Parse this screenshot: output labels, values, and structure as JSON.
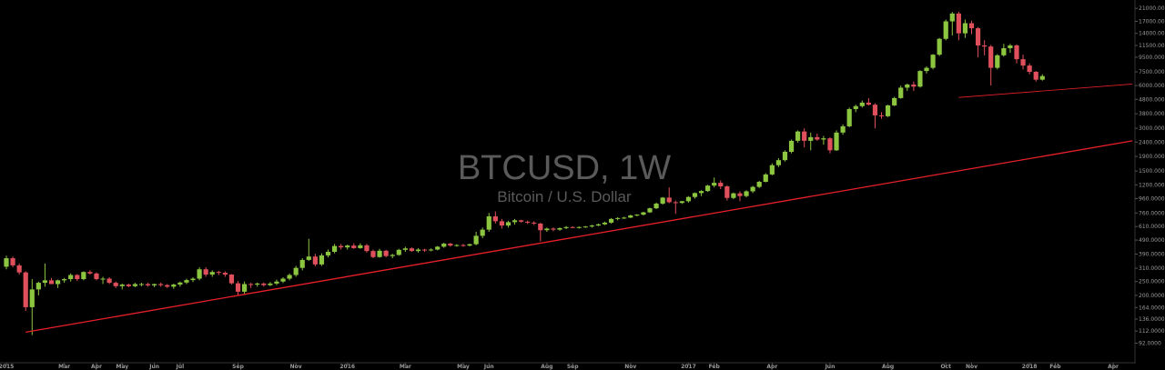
{
  "chart_data": {
    "type": "candlestick",
    "title": "BTCUSD, 1W",
    "subtitle": "Bitcoin / U.S. Dollar",
    "y_scale": "log",
    "ylim": [
      80,
      22000
    ],
    "grid": false,
    "colors": {
      "up": "#8cc540",
      "down": "#e0505c",
      "trendline": "#e8202a",
      "text": "#9a9a9a",
      "background": "#000000"
    },
    "y_ticks": [
      {
        "value": 21000,
        "label": "21000.0000"
      },
      {
        "value": 17000,
        "label": "17000.0000"
      },
      {
        "value": 14000,
        "label": "14000.0000"
      },
      {
        "value": 11500,
        "label": "11500.0000"
      },
      {
        "value": 9500,
        "label": "9500.0000"
      },
      {
        "value": 7500,
        "label": "7500.0000"
      },
      {
        "value": 6000,
        "label": "6000.0000"
      },
      {
        "value": 4800,
        "label": "4800.0000"
      },
      {
        "value": 3800,
        "label": "3800.0000"
      },
      {
        "value": 3000,
        "label": "3000.0000"
      },
      {
        "value": 2400,
        "label": "2400.0000"
      },
      {
        "value": 1900,
        "label": "1900.0000"
      },
      {
        "value": 1500,
        "label": "1500.0000"
      },
      {
        "value": 1200,
        "label": "1200.0000"
      },
      {
        "value": 960,
        "label": "960.0000"
      },
      {
        "value": 760,
        "label": "760.0000"
      },
      {
        "value": 610,
        "label": "610.0000"
      },
      {
        "value": 490,
        "label": "490.0000"
      },
      {
        "value": 390,
        "label": "390.0000"
      },
      {
        "value": 310,
        "label": "310.0000"
      },
      {
        "value": 250,
        "label": "250.0000"
      },
      {
        "value": 200,
        "label": "200.0000"
      },
      {
        "value": 164,
        "label": "164.0000"
      },
      {
        "value": 136,
        "label": "136.0000"
      },
      {
        "value": 112,
        "label": "112.0000"
      },
      {
        "value": 92,
        "label": "92.0000"
      }
    ],
    "x_ticks": [
      {
        "label": "2015",
        "week": 0
      },
      {
        "label": "Mar",
        "week": 9
      },
      {
        "label": "Apr",
        "week": 14
      },
      {
        "label": "May",
        "week": 18
      },
      {
        "label": "Jun",
        "week": 23
      },
      {
        "label": "Jul",
        "week": 27
      },
      {
        "label": "Sep",
        "week": 36
      },
      {
        "label": "Nov",
        "week": 45
      },
      {
        "label": "2016",
        "week": 53
      },
      {
        "label": "Mar",
        "week": 62
      },
      {
        "label": "May",
        "week": 71
      },
      {
        "label": "Jun",
        "week": 75
      },
      {
        "label": "Aug",
        "week": 84
      },
      {
        "label": "Sep",
        "week": 88
      },
      {
        "label": "Nov",
        "week": 97
      },
      {
        "label": "2017",
        "week": 106
      },
      {
        "label": "Feb",
        "week": 110
      },
      {
        "label": "Apr",
        "week": 119
      },
      {
        "label": "Jun",
        "week": 128
      },
      {
        "label": "Aug",
        "week": 137
      },
      {
        "label": "Oct",
        "week": 146
      },
      {
        "label": "Nov",
        "week": 150
      },
      {
        "label": "2018",
        "week": 159
      },
      {
        "label": "Feb",
        "week": 163
      },
      {
        "label": "Apr",
        "week": 172
      }
    ],
    "candles": [
      [
        318,
        380,
        305,
        365
      ],
      [
        365,
        375,
        315,
        325
      ],
      [
        325,
        335,
        280,
        290
      ],
      [
        290,
        295,
        155,
        165
      ],
      [
        165,
        260,
        105,
        220
      ],
      [
        220,
        250,
        200,
        245
      ],
      [
        245,
        335,
        230,
        255
      ],
      [
        255,
        265,
        240,
        240
      ],
      [
        240,
        258,
        225,
        255
      ],
      [
        255,
        265,
        245,
        260
      ],
      [
        260,
        285,
        250,
        278
      ],
      [
        278,
        282,
        252,
        260
      ],
      [
        260,
        295,
        255,
        292
      ],
      [
        292,
        300,
        280,
        285
      ],
      [
        285,
        290,
        255,
        260
      ],
      [
        260,
        270,
        240,
        262
      ],
      [
        262,
        268,
        240,
        245
      ],
      [
        245,
        250,
        225,
        232
      ],
      [
        232,
        242,
        220,
        238
      ],
      [
        238,
        242,
        228,
        232
      ],
      [
        232,
        245,
        228,
        240
      ],
      [
        240,
        245,
        232,
        240
      ],
      [
        240,
        245,
        230,
        235
      ],
      [
        235,
        242,
        228,
        240
      ],
      [
        240,
        246,
        230,
        236
      ],
      [
        236,
        240,
        225,
        230
      ],
      [
        230,
        242,
        222,
        238
      ],
      [
        238,
        250,
        230,
        246
      ],
      [
        246,
        262,
        240,
        256
      ],
      [
        256,
        268,
        248,
        262
      ],
      [
        262,
        315,
        255,
        305
      ],
      [
        305,
        315,
        270,
        280
      ],
      [
        280,
        300,
        270,
        292
      ],
      [
        292,
        297,
        278,
        288
      ],
      [
        288,
        295,
        270,
        280
      ],
      [
        280,
        282,
        238,
        243
      ],
      [
        243,
        252,
        200,
        212
      ],
      [
        212,
        250,
        205,
        240
      ],
      [
        240,
        245,
        225,
        238
      ],
      [
        238,
        246,
        230,
        242
      ],
      [
        242,
        246,
        230,
        236
      ],
      [
        236,
        248,
        232,
        242
      ],
      [
        242,
        258,
        236,
        250
      ],
      [
        250,
        268,
        244,
        262
      ],
      [
        262,
        285,
        255,
        278
      ],
      [
        278,
        322,
        270,
        312
      ],
      [
        312,
        365,
        300,
        355
      ],
      [
        355,
        500,
        350,
        375
      ],
      [
        375,
        392,
        320,
        330
      ],
      [
        330,
        395,
        322,
        382
      ],
      [
        382,
        420,
        370,
        405
      ],
      [
        405,
        460,
        395,
        445
      ],
      [
        445,
        460,
        420,
        435
      ],
      [
        435,
        455,
        420,
        448
      ],
      [
        448,
        465,
        425,
        430
      ],
      [
        430,
        465,
        425,
        450
      ],
      [
        450,
        460,
        400,
        410
      ],
      [
        410,
        420,
        365,
        372
      ],
      [
        372,
        425,
        368,
        412
      ],
      [
        412,
        418,
        370,
        378
      ],
      [
        378,
        392,
        365,
        385
      ],
      [
        385,
        425,
        380,
        418
      ],
      [
        418,
        440,
        405,
        428
      ],
      [
        428,
        435,
        405,
        410
      ],
      [
        410,
        430,
        400,
        420
      ],
      [
        420,
        425,
        405,
        415
      ],
      [
        415,
        428,
        408,
        420
      ],
      [
        420,
        445,
        415,
        440
      ],
      [
        440,
        470,
        432,
        462
      ],
      [
        462,
        468,
        440,
        448
      ],
      [
        448,
        458,
        440,
        452
      ],
      [
        452,
        460,
        440,
        448
      ],
      [
        448,
        462,
        442,
        458
      ],
      [
        458,
        560,
        450,
        525
      ],
      [
        525,
        600,
        505,
        580
      ],
      [
        580,
        760,
        560,
        720
      ],
      [
        720,
        780,
        640,
        665
      ],
      [
        665,
        690,
        590,
        620
      ],
      [
        620,
        670,
        600,
        655
      ],
      [
        655,
        690,
        630,
        675
      ],
      [
        675,
        680,
        650,
        660
      ],
      [
        660,
        672,
        635,
        650
      ],
      [
        650,
        665,
        625,
        640
      ],
      [
        640,
        650,
        480,
        575
      ],
      [
        575,
        600,
        560,
        590
      ],
      [
        590,
        600,
        565,
        580
      ],
      [
        580,
        600,
        570,
        595
      ],
      [
        595,
        615,
        585,
        605
      ],
      [
        605,
        612,
        595,
        600
      ],
      [
        600,
        612,
        590,
        605
      ],
      [
        605,
        615,
        598,
        610
      ],
      [
        610,
        628,
        600,
        620
      ],
      [
        620,
        640,
        615,
        632
      ],
      [
        632,
        660,
        625,
        650
      ],
      [
        650,
        700,
        640,
        690
      ],
      [
        690,
        710,
        675,
        700
      ],
      [
        700,
        715,
        690,
        705
      ],
      [
        705,
        740,
        700,
        730
      ],
      [
        730,
        745,
        720,
        740
      ],
      [
        740,
        775,
        730,
        768
      ],
      [
        768,
        830,
        760,
        820
      ],
      [
        820,
        900,
        810,
        885
      ],
      [
        885,
        985,
        870,
        975
      ],
      [
        975,
        1150,
        890,
        905
      ],
      [
        905,
        930,
        750,
        895
      ],
      [
        895,
        925,
        880,
        920
      ],
      [
        920,
        1000,
        900,
        985
      ],
      [
        985,
        1060,
        960,
        1050
      ],
      [
        1050,
        1100,
        1000,
        1085
      ],
      [
        1085,
        1200,
        1070,
        1185
      ],
      [
        1185,
        1350,
        1150,
        1240
      ],
      [
        1240,
        1290,
        1120,
        1170
      ],
      [
        1170,
        1190,
        930,
        970
      ],
      [
        970,
        1060,
        950,
        1045
      ],
      [
        1045,
        1080,
        920,
        1000
      ],
      [
        1000,
        1100,
        980,
        1080
      ],
      [
        1080,
        1180,
        1050,
        1160
      ],
      [
        1160,
        1280,
        1140,
        1260
      ],
      [
        1260,
        1450,
        1250,
        1420
      ],
      [
        1420,
        1700,
        1400,
        1650
      ],
      [
        1650,
        1850,
        1600,
        1790
      ],
      [
        1790,
        2100,
        1750,
        2050
      ],
      [
        2050,
        2500,
        2000,
        2450
      ],
      [
        2450,
        2900,
        2380,
        2850
      ],
      [
        2850,
        3000,
        2200,
        2450
      ],
      [
        2450,
        2800,
        2100,
        2600
      ],
      [
        2600,
        2750,
        2450,
        2500
      ],
      [
        2500,
        2650,
        2300,
        2550
      ],
      [
        2550,
        2600,
        2000,
        2100
      ],
      [
        2100,
        2900,
        2080,
        2800
      ],
      [
        2800,
        3200,
        2700,
        3100
      ],
      [
        3100,
        4200,
        3050,
        4100
      ],
      [
        4100,
        4400,
        3900,
        4300
      ],
      [
        4300,
        4700,
        4200,
        4550
      ],
      [
        4550,
        4900,
        4350,
        4400
      ],
      [
        4400,
        4500,
        3000,
        3700
      ],
      [
        3700,
        3900,
        3500,
        3650
      ],
      [
        3650,
        4400,
        3600,
        4350
      ],
      [
        4350,
        5000,
        4300,
        4900
      ],
      [
        4900,
        6000,
        4850,
        5800
      ],
      [
        5800,
        6200,
        5500,
        6100
      ],
      [
        6100,
        6400,
        5500,
        5900
      ],
      [
        5900,
        7700,
        5800,
        7600
      ],
      [
        7600,
        8200,
        7300,
        8000
      ],
      [
        8000,
        10000,
        7800,
        9900
      ],
      [
        9900,
        13000,
        9700,
        12800
      ],
      [
        12800,
        17500,
        12500,
        17000
      ],
      [
        17000,
        19800,
        13500,
        19300
      ],
      [
        19300,
        19900,
        12500,
        14000
      ],
      [
        14000,
        17500,
        13000,
        16500
      ],
      [
        16500,
        17200,
        13800,
        15200
      ],
      [
        15200,
        15500,
        9500,
        11500
      ],
      [
        11500,
        12500,
        9800,
        11300
      ],
      [
        11300,
        11600,
        6000,
        8000
      ],
      [
        8000,
        10000,
        7800,
        9800
      ],
      [
        9800,
        11800,
        9600,
        11000
      ],
      [
        11000,
        11800,
        10200,
        11500
      ],
      [
        11500,
        11700,
        8600,
        9200
      ],
      [
        9200,
        9900,
        7800,
        8300
      ],
      [
        8300,
        8600,
        7200,
        7500
      ],
      [
        7500,
        7600,
        6400,
        6600
      ],
      [
        6600,
        7200,
        6500,
        7000
      ]
    ],
    "trendlines": [
      {
        "from": {
          "week": 3,
          "value": 110
        },
        "to": {
          "week": 175,
          "value": 2450
        }
      },
      {
        "from": {
          "week": 148,
          "value": 4950
        },
        "to": {
          "week": 175,
          "value": 6150
        }
      }
    ]
  }
}
